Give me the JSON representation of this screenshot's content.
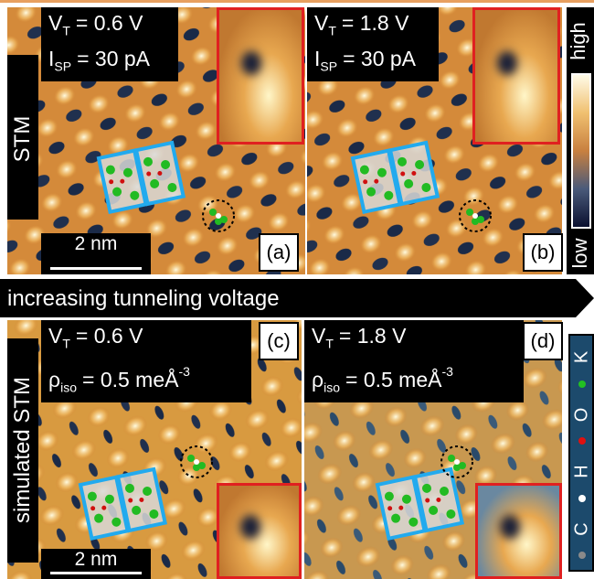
{
  "row_labels": [
    "STM",
    "simulated STM"
  ],
  "arrow_text": "increasing tunneling voltage",
  "panels": [
    {
      "label": "(a)",
      "lines": [
        {
          "symbol": "V",
          "sub": "T",
          "text": "= 0.6 V"
        },
        {
          "symbol": "I",
          "sub": "SP",
          "text": "= 30 pA"
        }
      ],
      "scale_bar": "2 nm"
    },
    {
      "label": "(b)",
      "lines": [
        {
          "symbol": "V",
          "sub": "T",
          "text": "= 1.8 V"
        },
        {
          "symbol": "I",
          "sub": "SP",
          "text": "= 30 pA"
        }
      ]
    },
    {
      "label": "(c)",
      "lines": [
        {
          "symbol": "V",
          "sub": "T",
          "text": "= 0.6 V"
        },
        {
          "symbol": "ρ",
          "sub": "iso",
          "text": "= 0.5 meÅ",
          "sup": "-3"
        }
      ],
      "scale_bar": "2 nm"
    },
    {
      "label": "(d)",
      "lines": [
        {
          "symbol": "V",
          "sub": "T",
          "text": "= 1.8 V"
        },
        {
          "symbol": "ρ",
          "sub": "iso",
          "text": "= 0.5 meÅ",
          "sup": "-3"
        }
      ]
    }
  ],
  "colorbar": {
    "high": "high",
    "low": "low"
  },
  "legend": [
    {
      "label": "C",
      "color": "#8a8a8a"
    },
    {
      "label": "H",
      "color": "#ffffff"
    },
    {
      "label": "O",
      "color": "#e01010"
    },
    {
      "label": "K",
      "color": "#22c022"
    }
  ]
}
